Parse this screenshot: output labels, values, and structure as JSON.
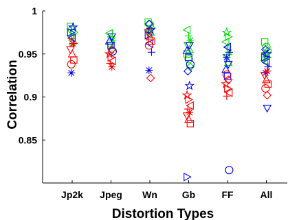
{
  "chart_data": {
    "type": "scatter",
    "xlabel": "Distortion Types",
    "ylabel": "Correlation",
    "categories": [
      "Jp2k",
      "Jpeg",
      "Wn",
      "Gb",
      "FF",
      "All"
    ],
    "ylim": [
      0.8,
      1.0
    ],
    "yticks": [
      0.85,
      0.9,
      0.95,
      1.0
    ],
    "ytick_labels": [
      "0.85",
      "0.9",
      "0.95",
      "1"
    ],
    "grid": false,
    "legend": "none",
    "colors": {
      "red": "#ff0000",
      "green": "#00dd00",
      "blue": "#0000ff"
    },
    "series": [
      {
        "color": "green",
        "values": [
          [
            0,
            0.982
          ],
          [
            0,
            0.978
          ],
          [
            0,
            0.975
          ],
          [
            0,
            0.97
          ],
          [
            0,
            0.963
          ],
          [
            1,
            0.974
          ],
          [
            1,
            0.97
          ],
          [
            1,
            0.966
          ],
          [
            1,
            0.96
          ],
          [
            1,
            0.957
          ],
          [
            2,
            0.987
          ],
          [
            2,
            0.984
          ],
          [
            2,
            0.98
          ],
          [
            2,
            0.976
          ],
          [
            2,
            0.972
          ],
          [
            3,
            0.978
          ],
          [
            3,
            0.971
          ],
          [
            3,
            0.966
          ],
          [
            3,
            0.96
          ],
          [
            3,
            0.955
          ],
          [
            3,
            0.95
          ],
          [
            3,
            0.944
          ],
          [
            3,
            0.935
          ],
          [
            4,
            0.975
          ],
          [
            4,
            0.97
          ],
          [
            4,
            0.964
          ],
          [
            4,
            0.958
          ],
          [
            4,
            0.952
          ],
          [
            4,
            0.946
          ],
          [
            4,
            0.94
          ],
          [
            5,
            0.964
          ],
          [
            5,
            0.958
          ],
          [
            5,
            0.954
          ],
          [
            5,
            0.95
          ],
          [
            5,
            0.946
          ],
          [
            5,
            0.942
          ]
        ]
      },
      {
        "color": "blue",
        "values": [
          [
            0,
            0.981
          ],
          [
            0,
            0.975
          ],
          [
            0,
            0.969
          ],
          [
            0,
            0.962
          ],
          [
            0,
            0.928
          ],
          [
            1,
            0.97
          ],
          [
            1,
            0.965
          ],
          [
            1,
            0.96
          ],
          [
            1,
            0.953
          ],
          [
            2,
            0.985
          ],
          [
            2,
            0.978
          ],
          [
            2,
            0.972
          ],
          [
            2,
            0.962
          ],
          [
            2,
            0.952
          ],
          [
            2,
            0.931
          ],
          [
            3,
            0.96
          ],
          [
            3,
            0.954
          ],
          [
            3,
            0.946
          ],
          [
            3,
            0.938
          ],
          [
            3,
            0.93
          ],
          [
            3,
            0.913
          ],
          [
            3,
            0.807
          ],
          [
            4,
            0.958
          ],
          [
            4,
            0.952
          ],
          [
            4,
            0.946
          ],
          [
            4,
            0.938
          ],
          [
            4,
            0.932
          ],
          [
            4,
            0.924
          ],
          [
            4,
            0.815
          ],
          [
            5,
            0.955
          ],
          [
            5,
            0.95
          ],
          [
            5,
            0.946
          ],
          [
            5,
            0.94
          ],
          [
            5,
            0.935
          ],
          [
            5,
            0.928
          ],
          [
            5,
            0.887
          ]
        ]
      },
      {
        "color": "red",
        "values": [
          [
            0,
            0.968
          ],
          [
            0,
            0.962
          ],
          [
            0,
            0.955
          ],
          [
            0,
            0.95
          ],
          [
            0,
            0.943
          ],
          [
            0,
            0.938
          ],
          [
            1,
            0.955
          ],
          [
            1,
            0.95
          ],
          [
            1,
            0.946
          ],
          [
            1,
            0.942
          ],
          [
            1,
            0.939
          ],
          [
            1,
            0.935
          ],
          [
            2,
            0.975
          ],
          [
            2,
            0.97
          ],
          [
            2,
            0.965
          ],
          [
            2,
            0.96
          ],
          [
            2,
            0.922
          ],
          [
            3,
            0.902
          ],
          [
            3,
            0.897
          ],
          [
            3,
            0.89
          ],
          [
            3,
            0.886
          ],
          [
            3,
            0.882
          ],
          [
            3,
            0.878
          ],
          [
            3,
            0.874
          ],
          [
            3,
            0.869
          ],
          [
            4,
            0.926
          ],
          [
            4,
            0.92
          ],
          [
            4,
            0.915
          ],
          [
            4,
            0.91
          ],
          [
            4,
            0.905
          ],
          [
            4,
            0.901
          ],
          [
            5,
            0.93
          ],
          [
            5,
            0.925
          ],
          [
            5,
            0.92
          ],
          [
            5,
            0.915
          ],
          [
            5,
            0.91
          ],
          [
            5,
            0.902
          ]
        ]
      }
    ]
  }
}
